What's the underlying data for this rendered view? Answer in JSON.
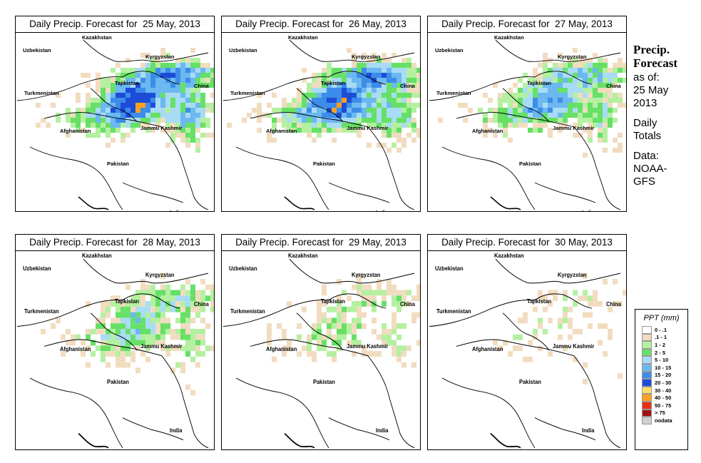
{
  "panels": [
    {
      "title": "Daily Precip. Forecast for  25 May, 2013",
      "intensity": 1.0
    },
    {
      "title": "Daily Precip. Forecast for  26 May, 2013",
      "intensity": 0.95
    },
    {
      "title": "Daily Precip. Forecast for  27 May, 2013",
      "intensity": 0.7
    },
    {
      "title": "Daily Precip. Forecast for  28 May, 2013",
      "intensity": 0.5
    },
    {
      "title": "Daily Precip. Forecast for  29 May, 2013",
      "intensity": 0.3
    },
    {
      "title": "Daily Precip. Forecast for  30 May, 2013",
      "intensity": 0.15
    }
  ],
  "map_labels": {
    "kazakhstan": "Kazakhstan",
    "uzbekistan": "Uzbekistan",
    "kyrgyzstan": "Kyrgyzstan",
    "tajikistan": "Tajikistan",
    "turkmenistan": "Turkmenistan",
    "china": "China",
    "afghanistan": "Afghanistan",
    "jammu_kashmir": "Jammu Kashmir",
    "pakistan": "Pakistan",
    "india": "India"
  },
  "sidebar": {
    "heading_line1": "Precip.",
    "heading_line2": "Forecast",
    "line1": "as of:",
    "line2": "25 May",
    "line3": "2013",
    "line4": "Daily",
    "line5": "Totals",
    "line6": "Data:",
    "line7": "NOAA-",
    "line8": "GFS"
  },
  "legend": {
    "title": "PPT (mm)",
    "items": [
      {
        "label": "0 - .1",
        "color": "#ffffff"
      },
      {
        "label": ".1 - 1",
        "color": "#f2dcc0"
      },
      {
        "label": "1 - 2",
        "color": "#b4f0a0"
      },
      {
        "label": "2 - 5",
        "color": "#66e066"
      },
      {
        "label": "5 - 10",
        "color": "#a8dcf4"
      },
      {
        "label": "10 - 15",
        "color": "#6cb8f0"
      },
      {
        "label": "15 - 20",
        "color": "#3c8cea"
      },
      {
        "label": "20 - 30",
        "color": "#1c4cd8"
      },
      {
        "label": "30 - 40",
        "color": "#ffe066"
      },
      {
        "label": "40 - 50",
        "color": "#ffa020"
      },
      {
        "label": "50 - 75",
        "color": "#e83010"
      },
      {
        "label": "> 75",
        "color": "#a01010"
      },
      {
        "label": "nodata",
        "color": "#d0d0d0"
      }
    ]
  }
}
